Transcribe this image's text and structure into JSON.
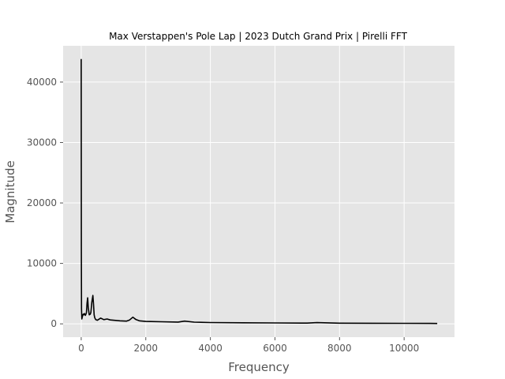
{
  "chart_data": {
    "type": "line",
    "title": "Max Verstappen's Pole Lap | 2023 Dutch Grand Prix | Pirelli FFT",
    "xlabel": "Frequency",
    "ylabel": "Magnitude",
    "xlim": [
      -560,
      11560
    ],
    "ylim": [
      -2200,
      46000
    ],
    "x_ticks": [
      0,
      2000,
      4000,
      6000,
      8000,
      10000
    ],
    "y_ticks": [
      0,
      10000,
      20000,
      30000,
      40000
    ],
    "grid": true,
    "style": "ggplot",
    "colors": {
      "line": "#000000",
      "plot_background": "#e5e5e5",
      "grid": "#ffffff"
    },
    "series": [
      {
        "x": [
          0,
          5,
          10,
          20,
          40,
          60,
          80,
          100,
          130,
          160,
          180,
          200,
          220,
          250,
          280,
          300,
          330,
          360,
          380,
          400,
          420,
          450,
          500,
          600,
          700,
          800,
          900,
          1000,
          1200,
          1400,
          1500,
          1600,
          1650,
          1700,
          1800,
          2000,
          2500,
          3000,
          3200,
          3500,
          4000,
          5000,
          6000,
          7000,
          7300,
          8000,
          9000,
          10000,
          10800,
          11025
        ],
        "y": [
          43800,
          12000,
          2500,
          800,
          1300,
          1600,
          1500,
          1700,
          1400,
          1800,
          3400,
          4300,
          2600,
          1500,
          1600,
          1900,
          3600,
          4700,
          3300,
          1500,
          1000,
          700,
          600,
          950,
          700,
          800,
          650,
          600,
          500,
          450,
          650,
          1100,
          900,
          700,
          500,
          400,
          350,
          300,
          450,
          280,
          220,
          180,
          150,
          130,
          200,
          110,
          100,
          80,
          70,
          60
        ]
      }
    ]
  }
}
